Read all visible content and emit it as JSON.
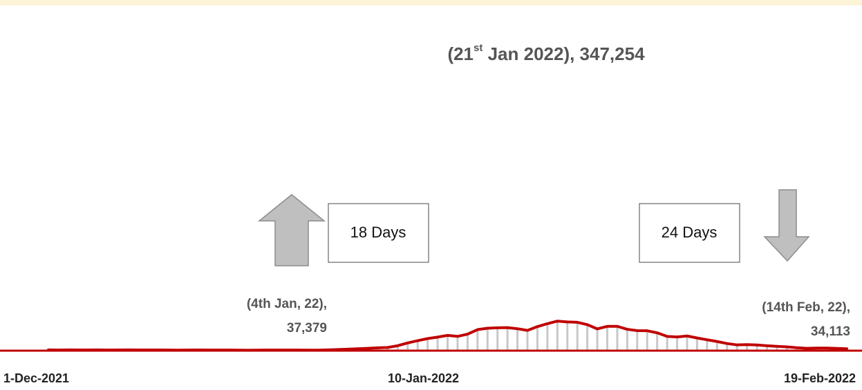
{
  "chart_data": {
    "type": "bar-line",
    "title_parts": [
      "(21",
      "st",
      " Jan 2022), 347,254"
    ],
    "annotations": [
      {
        "lines": [
          "(4th Jan, 22),",
          "37,379"
        ]
      },
      {
        "lines": [
          "(14th Feb, 22),",
          "34,113"
        ]
      }
    ],
    "boxes": [
      "18 Days",
      "24 Days"
    ],
    "categories": [
      "1-Dec-2021",
      null,
      null,
      null,
      null,
      null,
      null,
      null,
      null,
      null,
      null,
      null,
      null,
      null,
      null,
      null,
      null,
      null,
      null,
      null,
      null,
      null,
      null,
      null,
      null,
      null,
      null,
      null,
      null,
      null,
      null,
      null,
      null,
      null,
      null,
      null,
      null,
      null,
      null,
      null,
      "10-Jan-2022",
      null,
      null,
      null,
      null,
      null,
      null,
      null,
      null,
      null,
      null,
      null,
      null,
      null,
      null,
      null,
      null,
      null,
      null,
      null,
      null,
      null,
      null,
      null,
      null,
      null,
      null,
      null,
      null,
      null,
      null,
      null,
      null,
      null,
      null,
      null,
      null,
      null,
      null,
      null,
      "19-Feb-2022"
    ],
    "values": [
      8954,
      6990,
      9216,
      8603,
      8306,
      8895,
      6822,
      8439,
      9419,
      8503,
      7992,
      7774,
      7350,
      5784,
      6984,
      7974,
      7447,
      7145,
      7081,
      6563,
      5326,
      6317,
      7495,
      6650,
      7189,
      6987,
      6531,
      6358,
      9195,
      13154,
      16764,
      22775,
      27553,
      33750,
      37379,
      58097,
      90928,
      117100,
      141986,
      159632,
      179723,
      168063,
      194720,
      247417,
      264202,
      268833,
      271202,
      258089,
      238018,
      282970,
      317532,
      347254,
      337704,
      333533,
      306064,
      255874,
      285914,
      286384,
      251209,
      235532,
      234281,
      209918,
      167059,
      161386,
      172433,
      149394,
      127952,
      107474,
      83876,
      67597,
      71365,
      67084,
      58077,
      50407,
      44877,
      34113,
      27409,
      30615,
      30757,
      25920,
      22270
    ],
    "bar_color": "#c8c8c8",
    "line_color": "#c00000",
    "ylim": [
      0,
      3800000
    ]
  }
}
